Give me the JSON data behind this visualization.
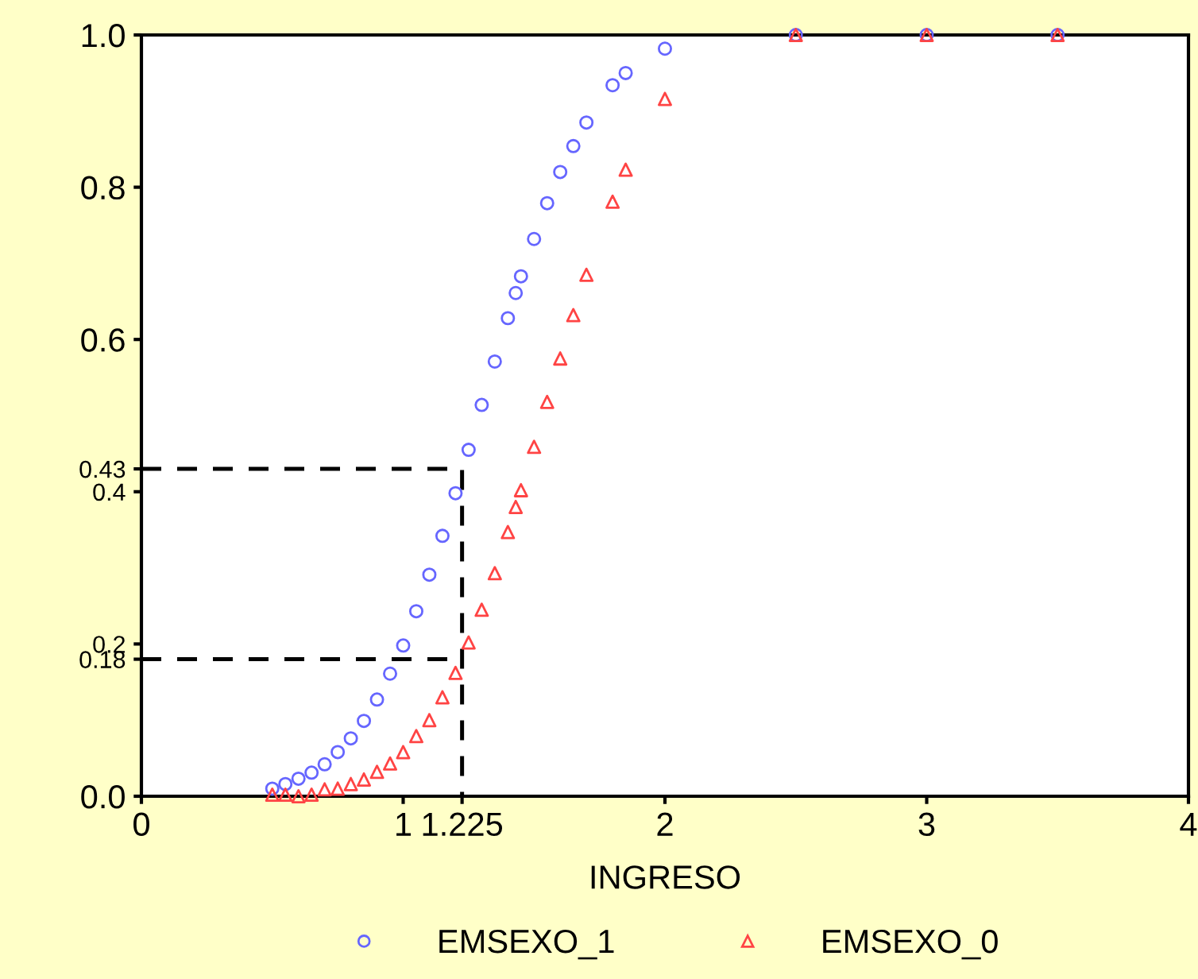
{
  "chart_data": {
    "type": "scatter",
    "xlabel": "INGRESO",
    "legend": "bottom",
    "grid": false,
    "xlim": [
      0,
      4
    ],
    "xticks": [
      0,
      1,
      {
        "value": 1.225,
        "label": "1.225"
      },
      2,
      3,
      4
    ],
    "ylim": [
      0,
      1
    ],
    "yticks": [
      {
        "value": 0,
        "label": "0.0"
      },
      0.18,
      0.2,
      0.4,
      0.43,
      0.6,
      0.8,
      {
        "value": 1,
        "label": "1.0"
      }
    ],
    "series": [
      {
        "type": "line",
        "color": "#000000",
        "line_style": "dashed",
        "marker": "none",
        "x": [
          0,
          1.225,
          1.225
        ],
        "values": [
          0.43,
          0.43,
          0
        ]
      },
      {
        "type": "line",
        "color": "#000000",
        "line_style": "dashed",
        "marker": "none",
        "x": [
          0,
          1.225
        ],
        "values": [
          0.18,
          0.18
        ]
      },
      {
        "name": "EMSEXO_1",
        "color": "#6666ff",
        "marker": "circle",
        "x": [
          0.5,
          0.55,
          0.6,
          0.65,
          0.7,
          0.75,
          0.8,
          0.85,
          0.9,
          0.95,
          1.0,
          1.05,
          1.1,
          1.15,
          1.2,
          1.25,
          1.3,
          1.35,
          1.4,
          1.43,
          1.45,
          1.5,
          1.55,
          1.6,
          1.65,
          1.7,
          1.8,
          1.85,
          2.0,
          2.5,
          3,
          3.5
        ],
        "values": [
          0.01,
          0.016,
          0.023,
          0.031,
          0.042,
          0.058,
          0.076,
          0.099,
          0.127,
          0.161,
          0.198,
          0.243,
          0.291,
          0.342,
          0.398,
          0.455,
          0.514,
          0.571,
          0.628,
          0.661,
          0.683,
          0.732,
          0.779,
          0.82,
          0.854,
          0.885,
          0.934,
          0.95,
          0.982,
          1,
          1,
          1
        ]
      },
      {
        "name": "EMSEXO_0",
        "color": "#ff4444",
        "marker": "triangle",
        "x": [
          0.5,
          0.55,
          0.6,
          0.65,
          0.7,
          0.75,
          0.8,
          0.85,
          0.9,
          0.95,
          1.0,
          1.05,
          1.1,
          1.15,
          1.2,
          1.25,
          1.3,
          1.35,
          1.4,
          1.43,
          1.45,
          1.5,
          1.55,
          1.6,
          1.65,
          1.7,
          1.8,
          1.85,
          2.0,
          2.5,
          3,
          3.5
        ],
        "values": [
          0.002,
          0.002,
          0.0,
          0.002,
          0.009,
          0.01,
          0.016,
          0.022,
          0.032,
          0.043,
          0.058,
          0.079,
          0.1,
          0.13,
          0.162,
          0.202,
          0.245,
          0.293,
          0.347,
          0.38,
          0.402,
          0.459,
          0.518,
          0.575,
          0.632,
          0.685,
          0.781,
          0.823,
          0.916,
          1,
          1,
          1
        ]
      }
    ]
  }
}
